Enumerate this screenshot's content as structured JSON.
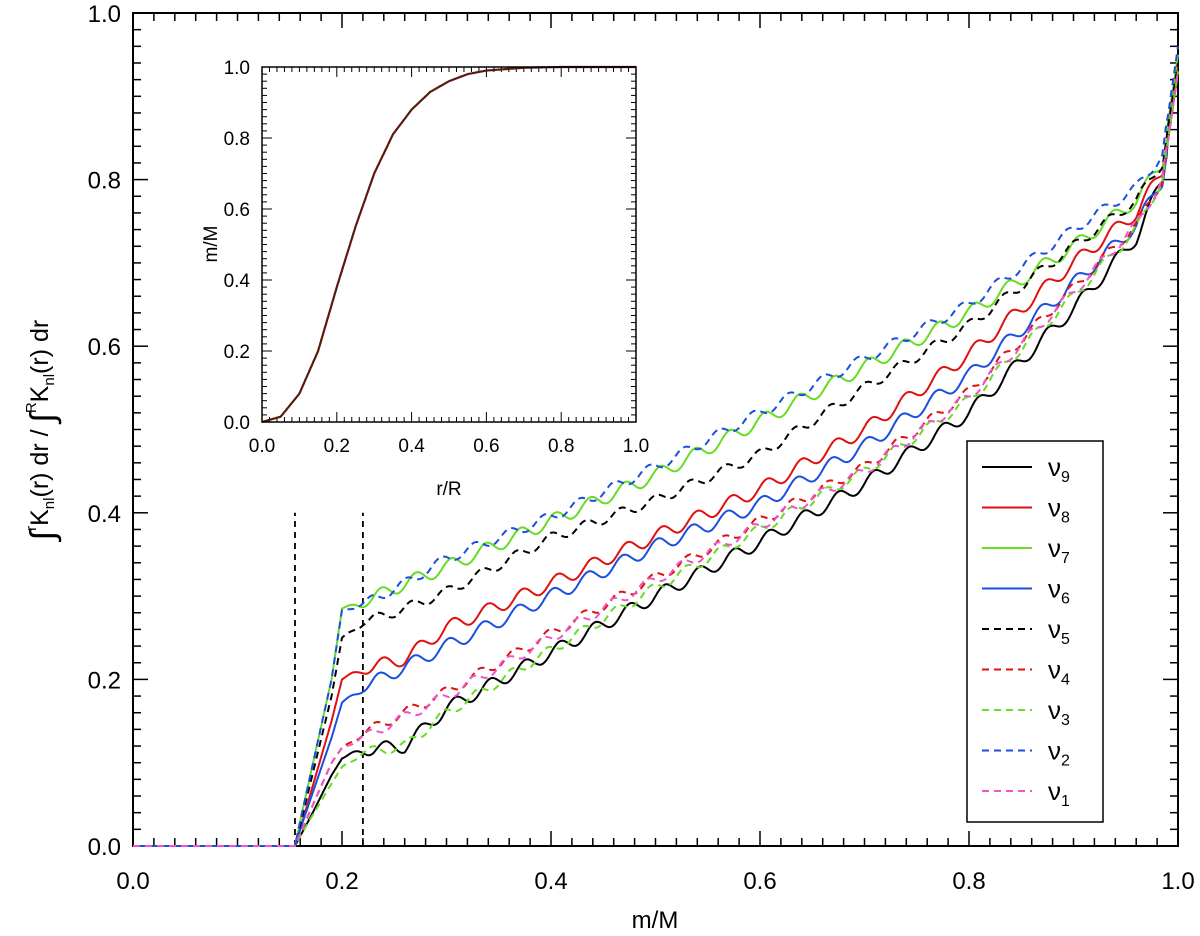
{
  "chart_data": [
    {
      "type": "line",
      "role": "main",
      "xlabel": "m/M",
      "ylabel": {
        "int1": "∫",
        "up1": "r",
        "k1": "K",
        "sub1": "nl",
        "mid": "(r) dr / ",
        "int2": "∫",
        "up2": "R",
        "k2": "K",
        "sub2": "nl",
        "end": "(r) dr"
      },
      "xlim": [
        0.0,
        1.0
      ],
      "ylim": [
        0.0,
        1.0
      ],
      "xticks": [
        "0.0",
        "0.2",
        "0.4",
        "0.6",
        "0.8",
        "1.0"
      ],
      "yticks": [
        "0.0",
        "0.2",
        "0.4",
        "0.6",
        "0.8",
        "1.0"
      ],
      "x_onset": 0.155,
      "vlines": [
        {
          "x": 0.155,
          "y0": 0.0,
          "y1": 0.4,
          "style": "dashed",
          "color": "#000000"
        },
        {
          "x": 0.22,
          "y0": 0.0,
          "y1": 0.4,
          "style": "dashed",
          "color": "#000000"
        }
      ],
      "series": [
        {
          "name": "ν9",
          "base": "ν",
          "sub": "9",
          "color": "#000000",
          "dash": "solid",
          "knots": [
            [
              0.155,
              0
            ],
            [
              0.16,
              0.012
            ],
            [
              0.17,
              0.035
            ],
            [
              0.19,
              0.085
            ],
            [
              0.2,
              0.105
            ],
            [
              0.22,
              0.115
            ],
            [
              0.26,
              0.12
            ],
            [
              0.3,
              0.165
            ],
            [
              0.4,
              0.232
            ],
            [
              0.5,
              0.3
            ],
            [
              0.6,
              0.365
            ],
            [
              0.7,
              0.435
            ],
            [
              0.8,
              0.52
            ],
            [
              0.9,
              0.645
            ],
            [
              0.96,
              0.73
            ],
            [
              0.985,
              0.8
            ],
            [
              1.0,
              0.93
            ]
          ],
          "wamp": 0.008,
          "wfreq": 30,
          "wphase": 0.0
        },
        {
          "name": "ν8",
          "base": "ν",
          "sub": "8",
          "color": "#e01010",
          "dash": "solid",
          "knots": [
            [
              0.155,
              0
            ],
            [
              0.16,
              0.02
            ],
            [
              0.19,
              0.15
            ],
            [
              0.2,
              0.2
            ],
            [
              0.22,
              0.212
            ],
            [
              0.26,
              0.225
            ],
            [
              0.3,
              0.262
            ],
            [
              0.4,
              0.315
            ],
            [
              0.5,
              0.372
            ],
            [
              0.6,
              0.428
            ],
            [
              0.7,
              0.5
            ],
            [
              0.8,
              0.59
            ],
            [
              0.9,
              0.7
            ],
            [
              0.96,
              0.76
            ],
            [
              0.985,
              0.81
            ],
            [
              1.0,
              0.94
            ]
          ],
          "wamp": 0.008,
          "wfreq": 30,
          "wphase": 0.4
        },
        {
          "name": "ν7",
          "base": "ν",
          "sub": "7",
          "color": "#66dd22",
          "dash": "solid",
          "knots": [
            [
              0.155,
              0
            ],
            [
              0.16,
              0.03
            ],
            [
              0.19,
              0.2
            ],
            [
              0.2,
              0.285
            ],
            [
              0.22,
              0.292
            ],
            [
              0.26,
              0.315
            ],
            [
              0.3,
              0.335
            ],
            [
              0.4,
              0.39
            ],
            [
              0.5,
              0.445
            ],
            [
              0.6,
              0.51
            ],
            [
              0.7,
              0.575
            ],
            [
              0.8,
              0.64
            ],
            [
              0.9,
              0.72
            ],
            [
              0.96,
              0.775
            ],
            [
              0.985,
              0.82
            ],
            [
              1.0,
              0.95
            ]
          ],
          "wamp": 0.008,
          "wfreq": 30,
          "wphase": 0.8
        },
        {
          "name": "ν6",
          "base": "ν",
          "sub": "6",
          "color": "#1a4fe0",
          "dash": "solid",
          "knots": [
            [
              0.155,
              0
            ],
            [
              0.16,
              0.02
            ],
            [
              0.19,
              0.13
            ],
            [
              0.2,
              0.172
            ],
            [
              0.22,
              0.19
            ],
            [
              0.26,
              0.215
            ],
            [
              0.3,
              0.24
            ],
            [
              0.4,
              0.3
            ],
            [
              0.5,
              0.36
            ],
            [
              0.6,
              0.41
            ],
            [
              0.7,
              0.48
            ],
            [
              0.8,
              0.565
            ],
            [
              0.9,
              0.675
            ],
            [
              0.96,
              0.745
            ],
            [
              0.985,
              0.8
            ],
            [
              1.0,
              0.93
            ]
          ],
          "wamp": 0.008,
          "wfreq": 30,
          "wphase": 1.2
        },
        {
          "name": "ν5",
          "base": "ν",
          "sub": "5",
          "color": "#000000",
          "dash": "dashed",
          "knots": [
            [
              0.155,
              0
            ],
            [
              0.16,
              0.025
            ],
            [
              0.19,
              0.18
            ],
            [
              0.2,
              0.25
            ],
            [
              0.22,
              0.268
            ],
            [
              0.26,
              0.285
            ],
            [
              0.3,
              0.305
            ],
            [
              0.4,
              0.37
            ],
            [
              0.5,
              0.415
            ],
            [
              0.6,
              0.47
            ],
            [
              0.7,
              0.55
            ],
            [
              0.8,
              0.625
            ],
            [
              0.9,
              0.72
            ],
            [
              0.96,
              0.775
            ],
            [
              0.985,
              0.82
            ],
            [
              1.0,
              0.94
            ]
          ],
          "wamp": 0.006,
          "wfreq": 30,
          "wphase": 1.6
        },
        {
          "name": "ν4",
          "base": "ν",
          "sub": "4",
          "color": "#e01010",
          "dash": "dashed",
          "knots": [
            [
              0.155,
              0
            ],
            [
              0.16,
              0.015
            ],
            [
              0.19,
              0.1
            ],
            [
              0.2,
              0.118
            ],
            [
              0.22,
              0.135
            ],
            [
              0.26,
              0.16
            ],
            [
              0.3,
              0.185
            ],
            [
              0.4,
              0.255
            ],
            [
              0.5,
              0.322
            ],
            [
              0.6,
              0.39
            ],
            [
              0.7,
              0.455
            ],
            [
              0.8,
              0.545
            ],
            [
              0.9,
              0.67
            ],
            [
              0.96,
              0.745
            ],
            [
              0.985,
              0.8
            ],
            [
              1.0,
              0.93
            ]
          ],
          "wamp": 0.006,
          "wfreq": 30,
          "wphase": 2.0
        },
        {
          "name": "ν3",
          "base": "ν",
          "sub": "3",
          "color": "#66dd22",
          "dash": "dashed",
          "knots": [
            [
              0.155,
              0
            ],
            [
              0.16,
              0.012
            ],
            [
              0.19,
              0.075
            ],
            [
              0.2,
              0.095
            ],
            [
              0.22,
              0.112
            ],
            [
              0.26,
              0.12
            ],
            [
              0.3,
              0.16
            ],
            [
              0.4,
              0.235
            ],
            [
              0.5,
              0.31
            ],
            [
              0.6,
              0.38
            ],
            [
              0.7,
              0.45
            ],
            [
              0.8,
              0.535
            ],
            [
              0.9,
              0.66
            ],
            [
              0.96,
              0.74
            ],
            [
              0.985,
              0.8
            ],
            [
              1.0,
              0.93
            ]
          ],
          "wamp": 0.006,
          "wfreq": 30,
          "wphase": 2.4
        },
        {
          "name": "ν2",
          "base": "ν",
          "sub": "2",
          "color": "#1a4fe0",
          "dash": "dashed",
          "knots": [
            [
              0.155,
              0
            ],
            [
              0.16,
              0.03
            ],
            [
              0.19,
              0.2
            ],
            [
              0.2,
              0.283
            ],
            [
              0.22,
              0.29
            ],
            [
              0.26,
              0.315
            ],
            [
              0.3,
              0.345
            ],
            [
              0.4,
              0.395
            ],
            [
              0.5,
              0.455
            ],
            [
              0.6,
              0.52
            ],
            [
              0.7,
              0.585
            ],
            [
              0.8,
              0.65
            ],
            [
              0.9,
              0.74
            ],
            [
              0.96,
              0.79
            ],
            [
              0.985,
              0.83
            ],
            [
              1.0,
              0.96
            ]
          ],
          "wamp": 0.006,
          "wfreq": 30,
          "wphase": 2.8
        },
        {
          "name": "ν1",
          "base": "ν",
          "sub": "1",
          "color": "#ee55cc",
          "dash": "dashed",
          "knots": [
            [
              0.155,
              0
            ],
            [
              0.16,
              0.015
            ],
            [
              0.19,
              0.1
            ],
            [
              0.2,
              0.118
            ],
            [
              0.22,
              0.13
            ],
            [
              0.26,
              0.155
            ],
            [
              0.3,
              0.18
            ],
            [
              0.4,
              0.25
            ],
            [
              0.5,
              0.32
            ],
            [
              0.6,
              0.385
            ],
            [
              0.7,
              0.45
            ],
            [
              0.8,
              0.54
            ],
            [
              0.9,
              0.665
            ],
            [
              0.96,
              0.745
            ],
            [
              0.985,
              0.8
            ],
            [
              1.0,
              0.93
            ]
          ],
          "wamp": 0.006,
          "wfreq": 30,
          "wphase": 3.2
        }
      ],
      "legend": {
        "position": "bottom-right"
      }
    },
    {
      "type": "line",
      "role": "inset",
      "xlabel": "r/R",
      "ylabel": "m/M",
      "xlim": [
        0.0,
        1.0
      ],
      "ylim": [
        0.0,
        1.0
      ],
      "xticks": [
        "0.0",
        "0.2",
        "0.4",
        "0.6",
        "0.8",
        "1.0"
      ],
      "yticks": [
        "0.0",
        "0.2",
        "0.4",
        "0.6",
        "0.8",
        "1.0"
      ],
      "series": [
        {
          "name": "m/M",
          "color": "#5a1a10",
          "x": [
            0.0,
            0.05,
            0.1,
            0.15,
            0.2,
            0.25,
            0.3,
            0.35,
            0.4,
            0.45,
            0.5,
            0.55,
            0.6,
            0.7,
            0.8,
            0.9,
            1.0
          ],
          "y": [
            0.0,
            0.015,
            0.08,
            0.2,
            0.38,
            0.55,
            0.7,
            0.81,
            0.88,
            0.93,
            0.96,
            0.98,
            0.99,
            0.998,
            1.0,
            1.0,
            1.0
          ]
        }
      ]
    }
  ]
}
